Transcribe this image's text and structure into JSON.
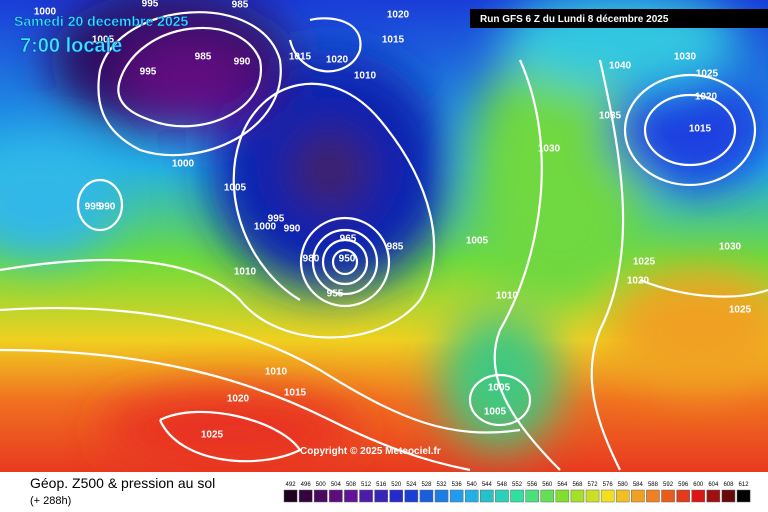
{
  "header": {
    "date": "Samedi 20 decembre 2025",
    "time": "7:00 locale",
    "run": "Run GFS 6 Z du Lundi 8 décembre 2025"
  },
  "copyright": "Copyright © 2025 Meteociel.fr",
  "footer": {
    "title": "Géop. Z500 & pression au sol",
    "lead": "(+ 288h)"
  },
  "scale": {
    "values": [
      492,
      496,
      500,
      504,
      508,
      512,
      516,
      520,
      524,
      528,
      532,
      536,
      540,
      544,
      548,
      552,
      556,
      560,
      564,
      568,
      572,
      576,
      580,
      584,
      588,
      592,
      596,
      600,
      604,
      608,
      612
    ]
  },
  "isobars": {
    "labels": [
      1000,
      1005,
      995,
      985,
      995,
      985,
      990,
      1020,
      1015,
      1015,
      1020,
      1010,
      1040,
      1030,
      1025,
      1020,
      1015,
      1035,
      1030,
      1000,
      1005,
      995,
      990,
      995,
      1000,
      990,
      965,
      985,
      950,
      980,
      955,
      1010,
      1005,
      1010,
      1025,
      1020,
      1030,
      1025,
      1010,
      1015,
      1020,
      1025,
      1005,
      1005
    ]
  }
}
